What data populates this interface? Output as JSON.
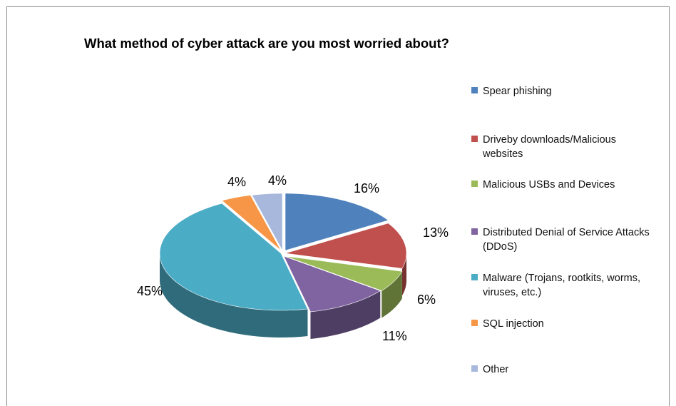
{
  "chart_data": {
    "type": "pie",
    "title": "What method of cyber attack are you most worried about?",
    "categories": [
      "Spear phishing",
      "Driveby downloads/Malicious websites",
      "Malicious USBs and Devices",
      "Distributed Denial of Service Attacks (DDoS)",
      "Malware (Trojans, rootkits, worms, viruses, etc.)",
      "SQL injection",
      "Other"
    ],
    "values": [
      16,
      13,
      6,
      11,
      45,
      4,
      4
    ],
    "data_labels": [
      "16%",
      "13%",
      "6%",
      "11%",
      "45%",
      "4%",
      "4%"
    ],
    "colors": [
      "#4F81BD",
      "#C0504D",
      "#9BBB59",
      "#8064A2",
      "#4BACC6",
      "#F79646",
      "#A8B8DC"
    ],
    "style": "3d-exploded-pie",
    "legend_placement": "right"
  }
}
